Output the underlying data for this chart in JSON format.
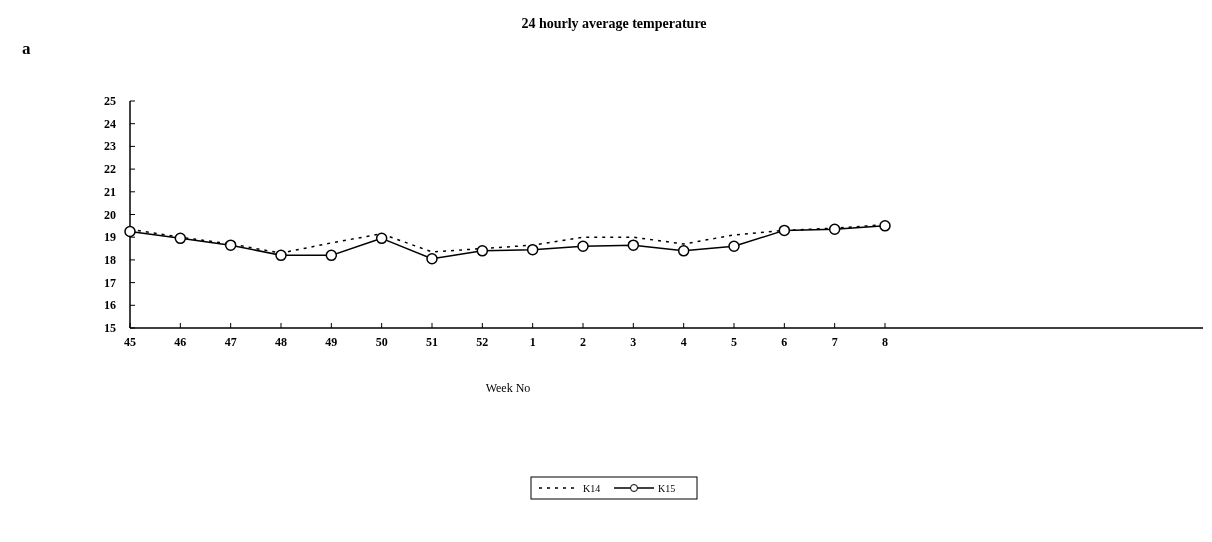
{
  "chart_data": {
    "type": "line",
    "title": "24 hourly average temperature",
    "xlabel": "Week No",
    "annotations": [
      "a"
    ],
    "categories": [
      "45",
      "46",
      "47",
      "48",
      "49",
      "50",
      "51",
      "52",
      "1",
      "2",
      "3",
      "4",
      "5",
      "6",
      "7",
      "8"
    ],
    "ylim": [
      15,
      25
    ],
    "yticks": [
      15,
      16,
      17,
      18,
      19,
      20,
      21,
      22,
      23,
      24,
      25
    ],
    "grid": false,
    "legend": "bottom",
    "series": [
      {
        "name": "K14",
        "color": "#000000",
        "line_style": "dotted",
        "marker": "none",
        "values": [
          19.35,
          19.0,
          18.7,
          18.3,
          18.75,
          19.15,
          18.35,
          18.5,
          18.65,
          19.0,
          19.0,
          18.7,
          19.1,
          19.3,
          19.4,
          19.55
        ]
      },
      {
        "name": "K15",
        "color": "#000000",
        "line_style": "solid",
        "marker": "circle",
        "values": [
          19.25,
          18.95,
          18.65,
          18.2,
          18.2,
          18.95,
          18.05,
          18.4,
          18.45,
          18.6,
          18.65,
          18.4,
          18.6,
          19.3,
          19.35,
          19.5
        ]
      }
    ]
  }
}
